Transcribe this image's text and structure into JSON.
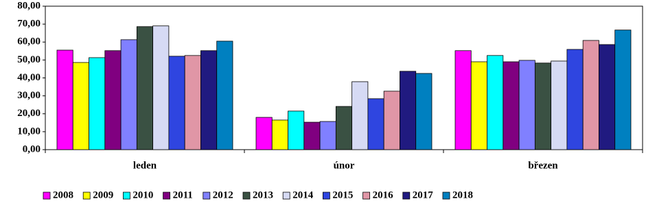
{
  "chart_data": {
    "type": "bar",
    "categories": [
      "leden",
      "únor",
      "březen"
    ],
    "series": [
      {
        "name": "2008",
        "color": "#ff00ff",
        "values": [
          55.5,
          18.0,
          55.2
        ]
      },
      {
        "name": "2009",
        "color": "#ffff00",
        "values": [
          48.6,
          16.5,
          49.0
        ]
      },
      {
        "name": "2010",
        "color": "#00ffff",
        "values": [
          51.3,
          21.5,
          52.5
        ]
      },
      {
        "name": "2011",
        "color": "#800080",
        "values": [
          55.2,
          15.3,
          49.0
        ]
      },
      {
        "name": "2012",
        "color": "#8080ff",
        "values": [
          61.3,
          15.7,
          49.8
        ]
      },
      {
        "name": "2013",
        "color": "#3a5143",
        "values": [
          68.6,
          24.1,
          48.3
        ]
      },
      {
        "name": "2014",
        "color": "#d6daf4",
        "values": [
          69.0,
          37.9,
          49.4
        ]
      },
      {
        "name": "2015",
        "color": "#2f45e0",
        "values": [
          52.1,
          28.4,
          55.9
        ]
      },
      {
        "name": "2016",
        "color": "#e096a6",
        "values": [
          52.5,
          32.6,
          60.9
        ]
      },
      {
        "name": "2017",
        "color": "#201a80",
        "values": [
          55.2,
          43.7,
          58.6
        ]
      },
      {
        "name": "2018",
        "color": "#0080c0",
        "values": [
          60.5,
          42.5,
          66.7
        ]
      }
    ],
    "ylim": [
      0,
      80
    ],
    "yticks": [
      {
        "value": 0,
        "label": "0,00"
      },
      {
        "value": 10,
        "label": "10,00"
      },
      {
        "value": 20,
        "label": "20,00"
      },
      {
        "value": 30,
        "label": "30,00"
      },
      {
        "value": 40,
        "label": "40,00"
      },
      {
        "value": 50,
        "label": "50,00"
      },
      {
        "value": 60,
        "label": "60,00"
      },
      {
        "value": 70,
        "label": "70,00"
      },
      {
        "value": 80,
        "label": "80,00"
      }
    ],
    "grid": false,
    "legend": "bottom"
  }
}
